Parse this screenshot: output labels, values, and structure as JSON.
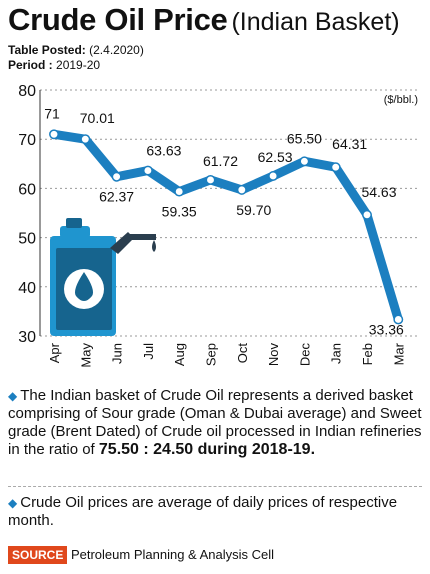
{
  "header": {
    "title": "Crude Oil Price",
    "subtitle": "(Indian Basket)",
    "posted_label": "Table Posted:",
    "posted_value": "(2.4.2020)",
    "period_label": "Period :",
    "period_value": "2019-20"
  },
  "chart_data": {
    "type": "line",
    "unit": "($/bbl.)",
    "categories": [
      "Apr",
      "May",
      "Jun",
      "Jul",
      "Aug",
      "Sep",
      "Oct",
      "Nov",
      "Dec",
      "Jan",
      "Feb",
      "Mar"
    ],
    "values": [
      71,
      70.01,
      62.37,
      63.63,
      59.35,
      61.72,
      59.7,
      62.53,
      65.5,
      64.31,
      54.63,
      33.36
    ],
    "value_labels": [
      "71",
      "70.01",
      "62.37",
      "63.63",
      "59.35",
      "61.72",
      "59.70",
      "62.53",
      "65.50",
      "64.31",
      "54.63",
      "33.36"
    ],
    "ylim": [
      30,
      80
    ],
    "yticks": [
      30,
      40,
      50,
      60,
      70,
      80
    ],
    "grid": true,
    "line_color": "#1c7fc0",
    "icon": "oil-can-icon"
  },
  "notes": {
    "note1_text": "The Indian basket of Crude Oil represents a derived basket comprising of Sour grade (Oman & Dubai average) and Sweet grade (Brent Dated) of Crude oil processed in Indian refineries in the ratio of ",
    "note1_ratio": "75.50 : 24.50 during 2018-19.",
    "note2_text": "Crude Oil prices are average of daily prices of respective month."
  },
  "source": {
    "label": "SOURCE",
    "text": "Petroleum Planning & Analysis Cell"
  }
}
